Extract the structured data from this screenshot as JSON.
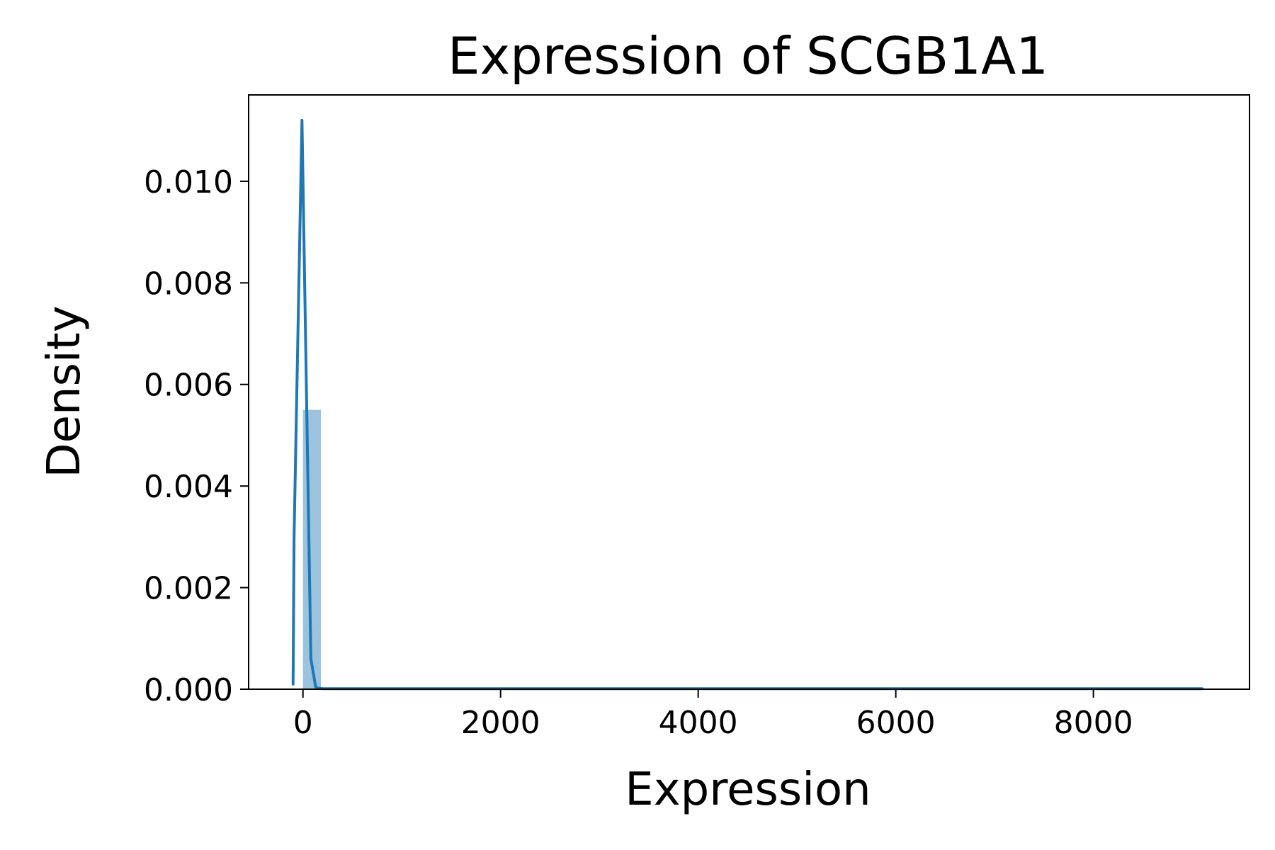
{
  "chart_data": {
    "type": "histogram",
    "title": "Expression of SCGB1A1",
    "xlabel": "Expression",
    "ylabel": "Density",
    "xlim": [
      -550,
      9580
    ],
    "ylim": [
      0,
      0.0117
    ],
    "xticks": [
      0,
      2000,
      4000,
      6000,
      8000
    ],
    "xtick_labels": [
      "0",
      "2000",
      "4000",
      "6000",
      "8000"
    ],
    "yticks": [
      0.0,
      0.002,
      0.004,
      0.006,
      0.008,
      0.01
    ],
    "ytick_labels": [
      "0.000",
      "0.002",
      "0.004",
      "0.006",
      "0.008",
      "0.010"
    ],
    "grid": false,
    "bars": [
      {
        "x0": 0,
        "x1": 182,
        "density": 0.0055
      }
    ],
    "kde": {
      "x": [
        -100,
        -90,
        -10,
        80,
        130,
        200,
        500,
        1000,
        2000,
        4000,
        6000,
        8000,
        9100
      ],
      "y": [
        0.0001,
        0.003,
        0.0112,
        0.0006,
        3e-05,
        1e-05,
        1e-05,
        1e-05,
        1e-05,
        1e-05,
        1e-05,
        1e-05,
        1e-05
      ]
    },
    "colors": {
      "bar": "#9cc3dd",
      "line": "#1f77b4"
    }
  }
}
